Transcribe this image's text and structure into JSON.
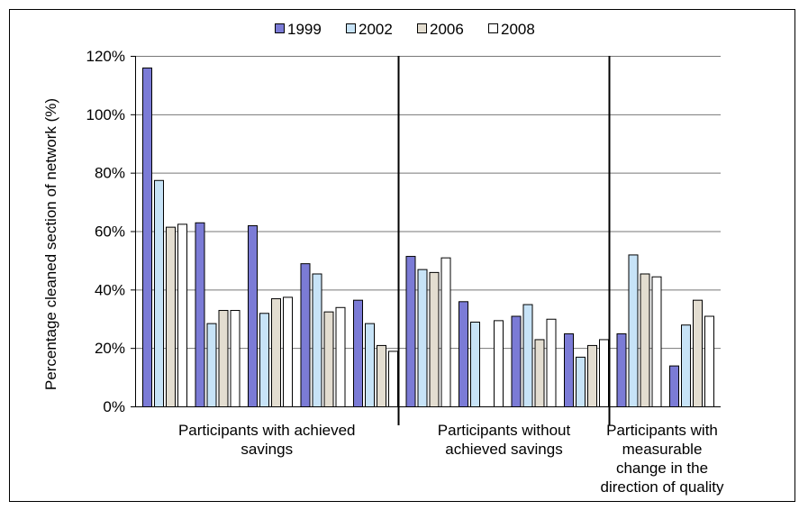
{
  "chart_data": {
    "type": "bar",
    "ylabel": "Percentage cleaned section of network (%)",
    "xlabel": "",
    "ylim": [
      0,
      120
    ],
    "yticks": [
      "0%",
      "20%",
      "40%",
      "60%",
      "80%",
      "100%",
      "120%"
    ],
    "grid": true,
    "legend_position": "top",
    "colors": [
      "#7b7bd6",
      "#c7e3f7",
      "#e3ddd0",
      "#ffffff"
    ],
    "series": [
      {
        "name": "1999",
        "values": [
          116,
          63,
          62,
          49,
          36.5,
          51.5,
          36,
          31,
          25,
          25,
          14
        ]
      },
      {
        "name": "2002",
        "values": [
          77.5,
          28.5,
          32,
          45.5,
          28.5,
          47,
          29,
          35,
          17,
          52,
          28
        ]
      },
      {
        "name": "2006",
        "values": [
          61.5,
          33,
          37,
          32.5,
          21,
          46,
          null,
          23,
          21,
          45.5,
          36.5
        ]
      },
      {
        "name": "2008",
        "values": [
          62.5,
          33,
          37.5,
          34,
          19,
          51,
          29.5,
          30,
          23,
          44.5,
          31
        ]
      }
    ],
    "groups": [
      {
        "label": "Participants with achieved savings",
        "lines": [
          "Participants with achieved",
          "savings"
        ],
        "count": 5
      },
      {
        "label": "Participants without achieved savings",
        "lines": [
          "Participants without",
          "achieved savings"
        ],
        "count": 4
      },
      {
        "label": "Participants with measurable change in the direction of quality",
        "lines": [
          "Participants with",
          "measurable",
          "change in the",
          "direction of quality"
        ],
        "count": 2
      }
    ]
  }
}
